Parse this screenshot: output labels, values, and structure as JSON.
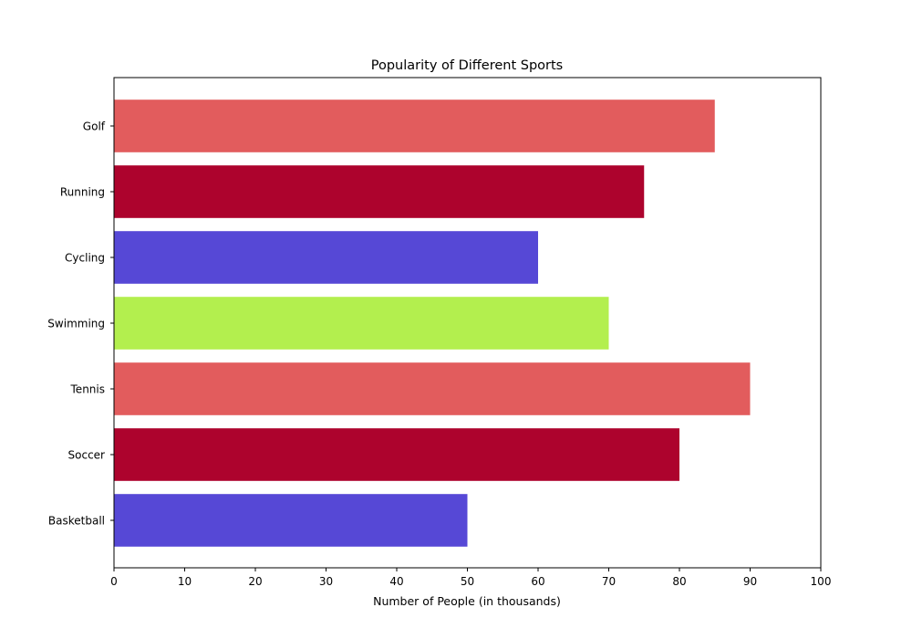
{
  "chart_data": {
    "type": "bar",
    "orientation": "horizontal",
    "title": "Popularity of Different Sports",
    "xlabel": "Number of People (in thousands)",
    "ylabel": "",
    "xlim": [
      0,
      100
    ],
    "xticks": [
      0,
      10,
      20,
      30,
      40,
      50,
      60,
      70,
      80,
      90,
      100
    ],
    "categories": [
      "Basketball",
      "Soccer",
      "Tennis",
      "Swimming",
      "Cycling",
      "Running",
      "Golf"
    ],
    "values": [
      50,
      80,
      90,
      70,
      60,
      75,
      85
    ],
    "colors": [
      "#5648d6",
      "#ad032d",
      "#e25c5d",
      "#b3ef4e",
      "#5648d6",
      "#ad032d",
      "#e25c5d"
    ],
    "grid": false,
    "legend": false
  }
}
